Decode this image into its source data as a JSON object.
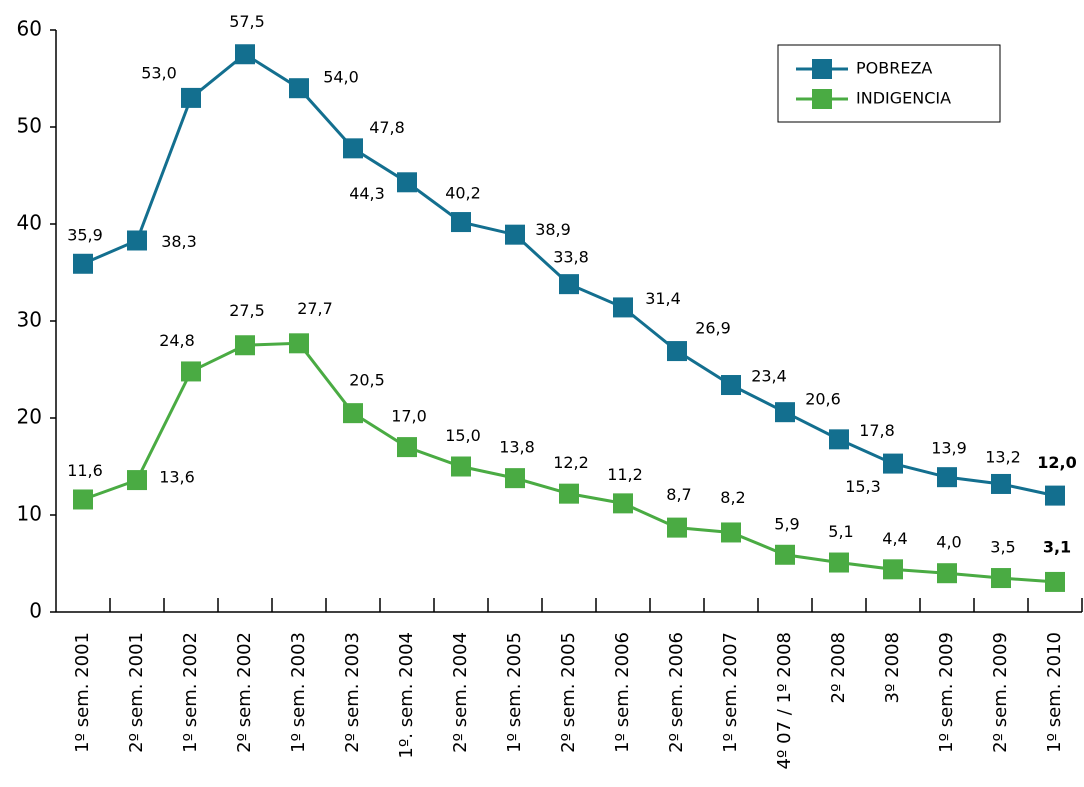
{
  "chart_data": {
    "type": "line",
    "categories": [
      "1º sem. 2001",
      "2º sem. 2001",
      "1º sem. 2002",
      "2º sem. 2002",
      "1º sem. 2003",
      "2º sem. 2003",
      "1º. sem. 2004",
      "2º sem. 2004",
      "1º  sem. 2005",
      "2º  sem. 2005",
      "1º  sem. 2006",
      "2º  sem. 2006",
      "1º  sem. 2007",
      "4º 07 / 1º 2008",
      "2º 2008",
      "3º 2008",
      "1º sem. 2009",
      "2º sem. 2009",
      "1º sem. 2010"
    ],
    "series": [
      {
        "name": "POBREZA",
        "color": "#136f8f",
        "values": [
          35.9,
          38.3,
          53.0,
          57.5,
          54.0,
          47.8,
          44.3,
          40.2,
          38.9,
          33.8,
          31.4,
          26.9,
          23.4,
          20.6,
          17.8,
          15.3,
          13.9,
          13.2,
          12.0
        ],
        "value_labels": [
          "35,9",
          "38,3",
          "53,0",
          "57,5",
          "54,0",
          "47,8",
          "44,3",
          "40,2",
          "38,9",
          "33,8",
          "31,4",
          "26,9",
          "23,4",
          "20,6",
          "17,8",
          "15,3",
          "13,9",
          "13,2",
          "12,0"
        ]
      },
      {
        "name": "INDIGENCIA",
        "color": "#4aab43",
        "values": [
          11.6,
          13.6,
          24.8,
          27.5,
          27.7,
          20.5,
          17.0,
          15.0,
          13.8,
          12.2,
          11.2,
          8.7,
          8.2,
          5.9,
          5.1,
          4.4,
          4.0,
          3.5,
          3.1
        ],
        "value_labels": [
          "11,6",
          "13,6",
          "24,8",
          "27,5",
          "27,7",
          "20,5",
          "17,0",
          "15,0",
          "13,8",
          "12,2",
          "11,2",
          "8,7",
          "8,2",
          "5,9",
          "5,1",
          "4,4",
          "4,0",
          "3,5",
          "3,1"
        ]
      }
    ],
    "ylim": [
      0,
      60
    ],
    "yticks": [
      0,
      10,
      20,
      30,
      40,
      50,
      60
    ],
    "legend": "upper right",
    "grid": false
  }
}
